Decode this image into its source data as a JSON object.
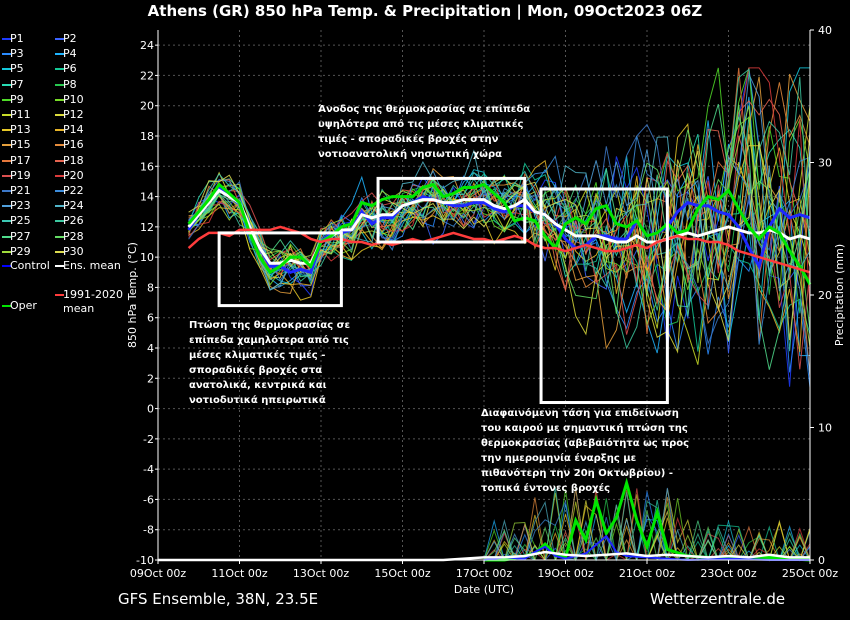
{
  "header": {
    "title": "Athens  (GR)  850 hPa Temp. & Precipitation | Mon, 09Oct2023 06Z"
  },
  "footer": {
    "model_info": "GFS Ensemble, 38N, 23.5E",
    "site": "Wetterzentrale.de"
  },
  "legend": {
    "items": [
      {
        "label": "P1",
        "color": "#1e3cff"
      },
      {
        "label": "P2",
        "color": "#3c64ff"
      },
      {
        "label": "P3",
        "color": "#2a8cff"
      },
      {
        "label": "P4",
        "color": "#1eb4ff"
      },
      {
        "label": "P5",
        "color": "#14c8dc"
      },
      {
        "label": "P6",
        "color": "#14c896"
      },
      {
        "label": "P7",
        "color": "#28dcb4"
      },
      {
        "label": "P8",
        "color": "#28c850"
      },
      {
        "label": "P9",
        "color": "#50dc28"
      },
      {
        "label": "P10",
        "color": "#78dc28"
      },
      {
        "label": "P11",
        "color": "#c8dc28"
      },
      {
        "label": "P12",
        "color": "#dcdc3c"
      },
      {
        "label": "P13",
        "color": "#e6c828"
      },
      {
        "label": "P14",
        "color": "#e6b428"
      },
      {
        "label": "P15",
        "color": "#e6a03c"
      },
      {
        "label": "P16",
        "color": "#e68c3c"
      },
      {
        "label": "P17",
        "color": "#e6783c"
      },
      {
        "label": "P18",
        "color": "#e66450"
      },
      {
        "label": "P19",
        "color": "#dc5050"
      },
      {
        "label": "P20",
        "color": "#dc3c3c"
      },
      {
        "label": "P21",
        "color": "#3c78c8"
      },
      {
        "label": "P22",
        "color": "#3c8cdc"
      },
      {
        "label": "P23",
        "color": "#50a0dc"
      },
      {
        "label": "P24",
        "color": "#50b4c8"
      },
      {
        "label": "P25",
        "color": "#3cc8b4"
      },
      {
        "label": "P26",
        "color": "#3cc8a0"
      },
      {
        "label": "P27",
        "color": "#50dc8c"
      },
      {
        "label": "P28",
        "color": "#64dc64"
      },
      {
        "label": "P29",
        "color": "#a0dc3c"
      },
      {
        "label": "P30",
        "color": "#dcdc50"
      },
      {
        "label": "Control",
        "color": "#0000ff"
      },
      {
        "label": "Ens. mean",
        "color": "#ffffff"
      },
      {
        "label": "1991-2020 mean",
        "color": "#ff3c3c"
      },
      {
        "label": "Oper",
        "color": "#00e600"
      }
    ]
  },
  "annotations": [
    {
      "text": "Άνοδος της θερμοκρασίας σε επίπεδα υψηλότερα από τις μέσες κλιματικές τιμές - σποραδικές βροχές στην νοτιοανατολική νησιωτική χώρα"
    },
    {
      "text": "Πτώση της θερμοκρασίας σε επίπεδα χαμηλότερα από τις μέσες κλιματικές τιμές - σποραδικές βροχές στα ανατολικά, κεντρικά και νοτιοδυτικά ηπειρωτικά"
    },
    {
      "text": "Διαφαινόμενη τάση για επιδείνωση του καιρού με σημαντική πτώση της θερμοκρασίας (αβεβαιότητα ως προς την ημερομηνία έναρξης με πιθανότερη την 20η Οκτωβρίου) - τοπικά έντονες βροχές"
    }
  ],
  "chart_data": {
    "type": "line",
    "xlabel": "Date (UTC)",
    "ylabel": "850 hPa Temp. (°C)",
    "y2label": "Precipitation (mm)",
    "ylim": [
      -10,
      25
    ],
    "y2lim": [
      0,
      40
    ],
    "xlim": [
      0,
      16
    ],
    "x_unit": "days from 09Oct 00z",
    "yticks": [
      -10,
      -8,
      -6,
      -4,
      -2,
      0,
      2,
      4,
      6,
      8,
      10,
      12,
      14,
      16,
      18,
      20,
      22,
      24
    ],
    "y2ticks": [
      0,
      10,
      20,
      30,
      40
    ],
    "xticks": [
      {
        "x": 0,
        "label": "09Oct 00z"
      },
      {
        "x": 2,
        "label": "11Oct 00z"
      },
      {
        "x": 4,
        "label": "13Oct 00z"
      },
      {
        "x": 6,
        "label": "15Oct 00z"
      },
      {
        "x": 8,
        "label": "17Oct 00z"
      },
      {
        "x": 10,
        "label": "19Oct 00z"
      },
      {
        "x": 12,
        "label": "21Oct 00z"
      },
      {
        "x": 14,
        "label": "23Oct 00z"
      },
      {
        "x": 16,
        "label": "25Oct 00z"
      }
    ],
    "grid": true,
    "series": [
      {
        "name": "Control",
        "color": "#1e28ff",
        "width": 3,
        "x": [
          0.75,
          1,
          1.25,
          1.5,
          1.75,
          2,
          2.25,
          2.5,
          2.75,
          3,
          3.25,
          3.5,
          3.75,
          4,
          4.25,
          4.5,
          4.75,
          5,
          5.25,
          5.5,
          5.75,
          6,
          6.25,
          6.5,
          6.75,
          7,
          7.25,
          7.5,
          7.75,
          8,
          8.25,
          8.5,
          8.75,
          9,
          9.25,
          9.5,
          9.75,
          10,
          10.25,
          10.5,
          10.75,
          11,
          11.25,
          11.5,
          11.75,
          12,
          12.25,
          12.5,
          12.75,
          13,
          13.25,
          13.5,
          13.75,
          14,
          14.25,
          14.5,
          14.75,
          15,
          15.25,
          15.5,
          15.75,
          16
        ],
        "y": [
          11.8,
          12.8,
          13.6,
          14.6,
          14.0,
          13.6,
          12.0,
          10.6,
          9.4,
          9.4,
          9.0,
          9.2,
          9.0,
          11.0,
          11.6,
          11.6,
          11.8,
          13.0,
          12.2,
          12.6,
          12.6,
          13.4,
          13.6,
          14.0,
          13.8,
          13.6,
          13.4,
          13.4,
          13.6,
          13.6,
          13.2,
          13.0,
          13.4,
          13.4,
          13.0,
          12.8,
          12.2,
          11.2,
          10.6,
          10.8,
          11.4,
          11.4,
          11.2,
          11.2,
          12.4,
          11.4,
          11.6,
          12.0,
          13.0,
          13.6,
          13.4,
          13.4,
          13.0,
          12.8,
          12.0,
          10.6,
          9.4,
          12.0,
          13.2,
          12.6,
          12.8,
          12.6
        ]
      },
      {
        "name": "Ens. mean",
        "color": "#ffffff",
        "width": 3,
        "x": [
          0.75,
          1,
          1.25,
          1.5,
          1.75,
          2,
          2.25,
          2.5,
          2.75,
          3,
          3.25,
          3.5,
          3.75,
          4,
          4.25,
          4.5,
          4.75,
          5,
          5.25,
          5.5,
          5.75,
          6,
          6.25,
          6.5,
          6.75,
          7,
          7.25,
          7.5,
          7.75,
          8,
          8.25,
          8.5,
          8.75,
          9,
          9.25,
          9.5,
          9.75,
          10,
          10.25,
          10.5,
          10.75,
          11,
          11.25,
          11.5,
          11.75,
          12,
          12.25,
          12.5,
          12.75,
          13,
          13.25,
          13.5,
          13.75,
          14,
          14.25,
          14.5,
          14.75,
          15,
          15.25,
          15.5,
          15.75,
          16
        ],
        "y": [
          12.0,
          12.8,
          13.6,
          14.4,
          14.0,
          13.6,
          12.0,
          10.6,
          9.6,
          9.6,
          9.8,
          9.6,
          9.6,
          11.0,
          11.4,
          11.8,
          11.8,
          12.8,
          12.6,
          12.8,
          12.8,
          13.4,
          13.6,
          13.8,
          13.8,
          13.6,
          13.6,
          13.8,
          13.8,
          13.8,
          13.4,
          13.2,
          13.4,
          13.8,
          13.0,
          12.8,
          12.2,
          11.8,
          11.4,
          11.4,
          11.4,
          11.2,
          11.0,
          11.0,
          11.4,
          11.0,
          11.0,
          11.2,
          11.4,
          11.6,
          11.4,
          11.6,
          11.8,
          12.0,
          11.8,
          11.6,
          11.6,
          11.8,
          11.6,
          11.2,
          11.4,
          11.2
        ]
      },
      {
        "name": "Oper",
        "color": "#00e600",
        "width": 3,
        "x": [
          0.75,
          1,
          1.25,
          1.5,
          1.75,
          2,
          2.25,
          2.5,
          2.75,
          3,
          3.25,
          3.5,
          3.75,
          4,
          4.25,
          4.5,
          4.75,
          5,
          5.25,
          5.5,
          5.75,
          6,
          6.25,
          6.5,
          6.75,
          7,
          7.25,
          7.5,
          7.75,
          8,
          8.25,
          8.5,
          8.75,
          9,
          9.25,
          9.5,
          9.75,
          10,
          10.25,
          10.5,
          10.75,
          11,
          11.25,
          11.5,
          11.75,
          12,
          12.25,
          12.5,
          12.75,
          13,
          13.25,
          13.5,
          13.75,
          14,
          14.25,
          14.5,
          14.75,
          15,
          15.25,
          15.5,
          15.75,
          16
        ],
        "y": [
          12.2,
          13.0,
          13.8,
          14.8,
          14.2,
          13.6,
          11.6,
          10.0,
          9.0,
          9.4,
          10.0,
          10.0,
          9.4,
          11.0,
          11.4,
          12.0,
          12.2,
          13.6,
          13.4,
          13.8,
          14.0,
          14.0,
          14.0,
          14.6,
          14.8,
          14.0,
          14.2,
          14.6,
          14.6,
          14.8,
          14.2,
          13.6,
          12.4,
          12.6,
          12.4,
          11.4,
          10.6,
          12.2,
          12.6,
          12.2,
          13.2,
          13.4,
          12.2,
          12.0,
          12.4,
          11.4,
          11.6,
          12.2,
          11.6,
          11.8,
          13.2,
          14.0,
          13.8,
          14.4,
          13.2,
          12.0,
          11.2,
          12.0,
          11.6,
          10.4,
          9.4,
          8.2
        ]
      },
      {
        "name": "1991-2020 mean",
        "color": "#ff3c3c",
        "width": 2.5,
        "x": [
          0.75,
          1,
          1.25,
          1.5,
          1.75,
          2,
          2.25,
          2.5,
          2.75,
          3,
          3.25,
          3.5,
          3.75,
          4,
          4.25,
          4.5,
          4.75,
          5,
          5.25,
          5.5,
          5.75,
          6,
          6.25,
          6.5,
          6.75,
          7,
          7.25,
          7.5,
          7.75,
          8,
          8.25,
          8.5,
          8.75,
          9,
          9.25,
          9.5,
          9.75,
          10,
          10.25,
          10.5,
          10.75,
          11,
          11.25,
          11.5,
          11.75,
          12,
          12.25,
          12.5,
          12.75,
          13,
          13.25,
          13.5,
          13.75,
          14,
          14.25,
          14.5,
          14.75,
          15,
          15.25,
          15.5,
          15.75,
          16
        ],
        "y": [
          10.6,
          11.2,
          11.6,
          11.6,
          11.4,
          11.8,
          11.8,
          11.8,
          11.8,
          12.0,
          11.8,
          11.6,
          11.2,
          11.0,
          11.2,
          11.2,
          11.0,
          11.0,
          10.8,
          11.0,
          10.8,
          11.0,
          11.2,
          11.0,
          11.2,
          11.4,
          11.6,
          11.4,
          11.2,
          11.2,
          11.0,
          11.2,
          11.4,
          11.2,
          10.8,
          10.6,
          10.6,
          10.4,
          10.6,
          10.8,
          10.6,
          10.4,
          10.4,
          10.6,
          10.8,
          10.6,
          11.0,
          11.2,
          11.4,
          11.2,
          11.2,
          11.0,
          11.0,
          10.8,
          10.4,
          10.2,
          10.0,
          9.8,
          9.6,
          9.4,
          9.2,
          9.0
        ]
      }
    ],
    "precipitation": [
      {
        "name": "Oper",
        "color": "#00e600",
        "width": 3,
        "x": [
          8,
          8.5,
          9,
          9.25,
          9.5,
          9.75,
          10,
          10.25,
          10.5,
          10.75,
          11,
          11.25,
          11.5,
          11.75,
          12,
          12.25,
          12.5,
          13,
          14,
          15,
          16
        ],
        "y": [
          0,
          0,
          0.3,
          0.5,
          1.2,
          0.4,
          0.2,
          3.0,
          1.5,
          4.5,
          2.0,
          3.2,
          5.8,
          3.0,
          1.0,
          3.6,
          0.8,
          0.3,
          0.1,
          0.2,
          0
        ]
      },
      {
        "name": "Control",
        "color": "#1e28ff",
        "width": 2,
        "x": [
          8,
          8.5,
          9,
          9.25,
          9.5,
          9.75,
          10,
          10.5,
          11,
          11.25,
          11.5,
          12,
          12.5,
          13,
          14,
          15,
          16
        ],
        "y": [
          0,
          0.2,
          0.1,
          0.6,
          1.0,
          0.3,
          0.1,
          0.5,
          1.8,
          0.6,
          0.3,
          0.2,
          0.1,
          0,
          0.1,
          0,
          0
        ]
      },
      {
        "name": "Ens. mean",
        "color": "#ffffff",
        "width": 2.5,
        "x": [
          0,
          7,
          8,
          8.5,
          9,
          9.5,
          10,
          10.5,
          11,
          11.5,
          12,
          12.5,
          13,
          13.5,
          14,
          14.5,
          15,
          15.5,
          16
        ],
        "y": [
          0,
          0,
          0.2,
          0.2,
          0.3,
          0.6,
          0.4,
          0.3,
          0.4,
          0.5,
          0.3,
          0.4,
          0.3,
          0.2,
          0.3,
          0.2,
          0.4,
          0.2,
          0.2
        ]
      }
    ],
    "boxes": [
      {
        "x0": 1.5,
        "x1": 4.5,
        "y0": 6.8,
        "y1": 11.6
      },
      {
        "x0": 5.4,
        "x1": 9.0,
        "y0": 11.0,
        "y1": 15.2
      },
      {
        "x0": 9.4,
        "x1": 12.5,
        "y0": 0.4,
        "y1": 14.5
      }
    ]
  }
}
